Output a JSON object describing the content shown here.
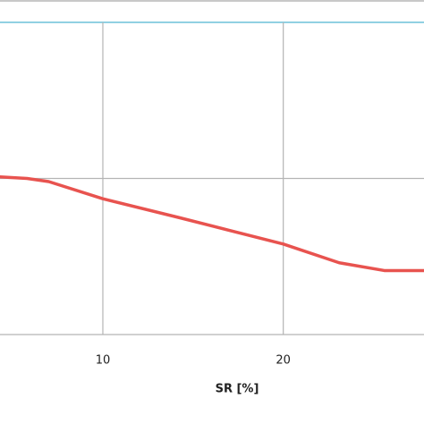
{
  "chart_data": {
    "type": "line",
    "x_label": "SR [%]",
    "x": [
      4.3,
      5.8,
      7,
      10,
      14.2,
      20,
      23.1,
      25.6,
      27.8
    ],
    "series": [
      {
        "color": "#e8534f",
        "values": [
          1.01,
          1.0,
          0.98,
          0.87,
          0.75,
          0.58,
          0.46,
          0.41,
          0.41
        ]
      }
    ],
    "xlim": [
      4.3,
      27.8
    ],
    "xticks": [
      10,
      20
    ],
    "ylim": [
      0,
      2
    ],
    "yticks": [
      0,
      1,
      2
    ],
    "grid": true
  }
}
